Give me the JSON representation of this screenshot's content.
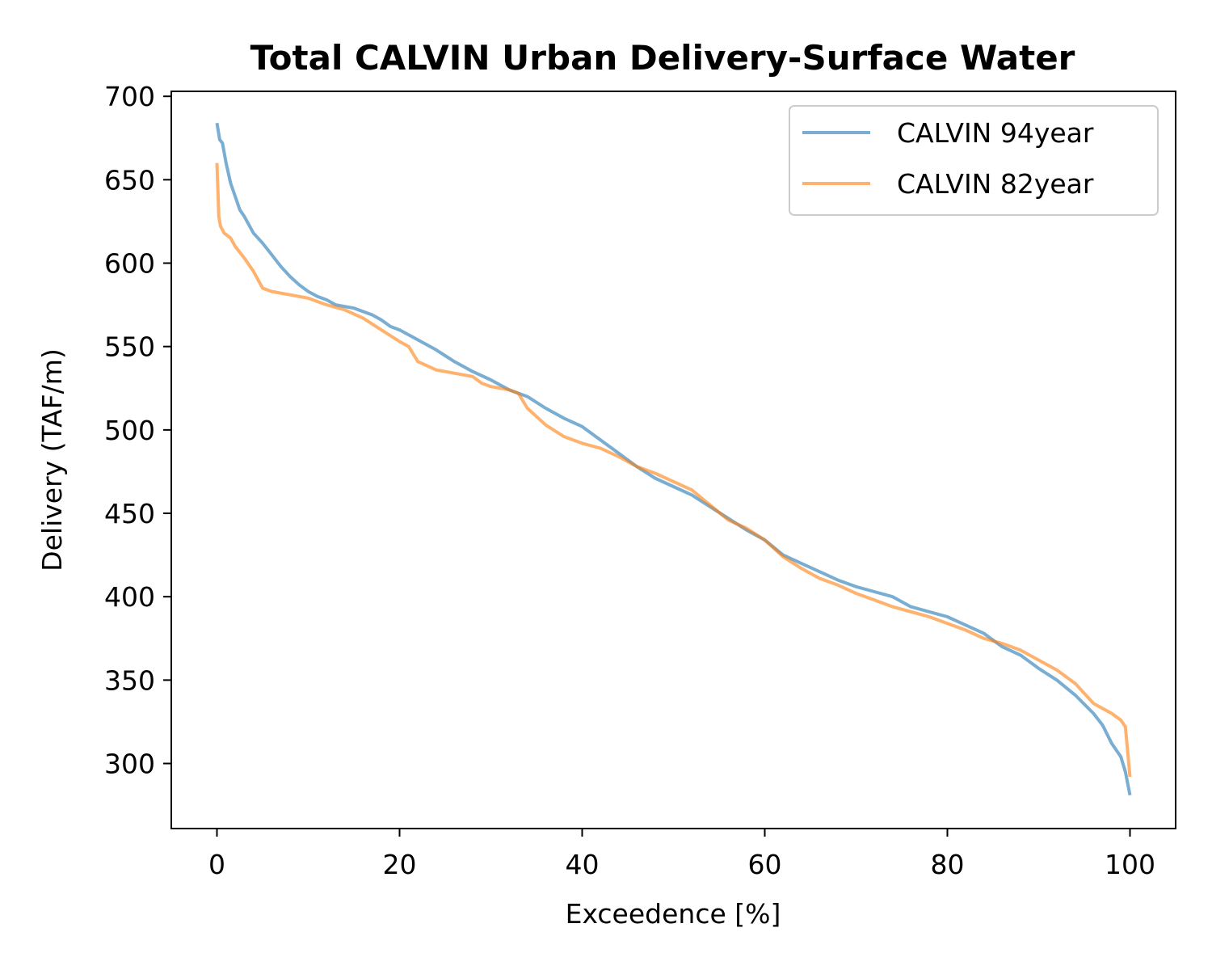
{
  "chart_data": {
    "type": "line",
    "title": "Total CALVIN Urban Delivery-Surface Water",
    "xlabel": "Exceedence [%]",
    "ylabel": "Delivery (TAF/m)",
    "xlim": [
      -5,
      105
    ],
    "ylim": [
      261,
      703
    ],
    "xticks": [
      0,
      20,
      40,
      60,
      80,
      100
    ],
    "yticks": [
      300,
      350,
      400,
      450,
      500,
      550,
      600,
      650,
      700
    ],
    "xtick_labels": [
      "0",
      "20",
      "40",
      "60",
      "80",
      "100"
    ],
    "ytick_labels": [
      "300",
      "350",
      "400",
      "450",
      "500",
      "550",
      "600",
      "650",
      "700"
    ],
    "grid": false,
    "legend_position": "top-right",
    "series": [
      {
        "name": "CALVIN 94year",
        "color": "#1f77b4",
        "opacity": 0.6,
        "x": [
          0,
          0.3,
          0.6,
          1,
          1.5,
          2,
          2.5,
          3,
          4,
          5,
          6,
          7,
          8,
          9,
          10,
          11,
          12,
          13,
          14,
          15,
          16,
          17,
          18,
          19,
          20,
          22,
          24,
          26,
          28,
          30,
          32,
          34,
          36,
          38,
          40,
          42,
          44,
          46,
          48,
          50,
          52,
          54,
          56,
          58,
          60,
          62,
          64,
          66,
          68,
          70,
          72,
          74,
          76,
          78,
          80,
          82,
          84,
          86,
          88,
          90,
          92,
          94,
          96,
          97,
          98,
          99,
          99.5,
          100
        ],
        "y": [
          684,
          674,
          672,
          660,
          648,
          640,
          632,
          628,
          618,
          612,
          605,
          598,
          592,
          587,
          583,
          580,
          578,
          575,
          574,
          573,
          571,
          569,
          566,
          562,
          560,
          554,
          548,
          541,
          535,
          530,
          524,
          520,
          513,
          507,
          502,
          494,
          486,
          478,
          471,
          466,
          461,
          454,
          447,
          440,
          434,
          425,
          420,
          415,
          410,
          406,
          403,
          400,
          394,
          391,
          388,
          383,
          378,
          370,
          365,
          357,
          350,
          341,
          330,
          323,
          312,
          304,
          295,
          281
        ]
      },
      {
        "name": "CALVIN 82year",
        "color": "#ff7f0e",
        "opacity": 0.6,
        "x": [
          0,
          0.1,
          0.2,
          0.4,
          0.8,
          1.5,
          2,
          3,
          4,
          4.5,
          5,
          6,
          8,
          10,
          11,
          12,
          14,
          16,
          18,
          20,
          21,
          22,
          24,
          26,
          28,
          29,
          30,
          32,
          33,
          34,
          36,
          38,
          40,
          42,
          44,
          46,
          48,
          50,
          52,
          54,
          56,
          58,
          60,
          62,
          64,
          66,
          68,
          70,
          72,
          74,
          76,
          78,
          80,
          82,
          84,
          86,
          88,
          90,
          92,
          94,
          96,
          98,
          99,
          99.5,
          100
        ],
        "y": [
          660,
          645,
          628,
          622,
          618,
          615,
          610,
          603,
          595,
          590,
          585,
          583,
          581,
          579,
          577,
          575,
          572,
          567,
          560,
          553,
          550,
          541,
          536,
          534,
          532,
          528,
          526,
          524,
          522,
          513,
          503,
          496,
          492,
          489,
          484,
          478,
          474,
          469,
          464,
          455,
          446,
          441,
          434,
          424,
          417,
          411,
          407,
          402,
          398,
          394,
          391,
          388,
          384,
          380,
          375,
          372,
          368,
          362,
          356,
          348,
          336,
          330,
          326,
          322,
          292
        ]
      }
    ]
  }
}
